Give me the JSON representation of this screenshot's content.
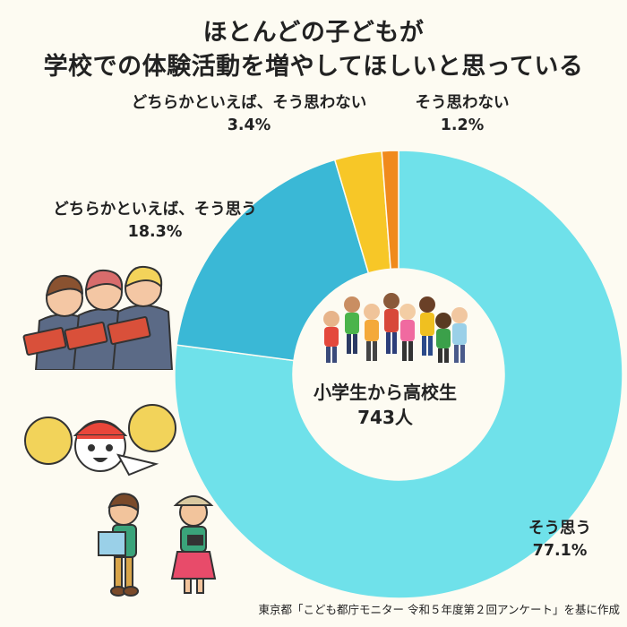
{
  "title": {
    "line1": "ほとんどの子どもが",
    "line2": "学校での体験活動を増やしてほしいと思っている"
  },
  "chart_data": {
    "type": "pie",
    "categories": [
      "そう思う",
      "どちらかといえば、そう思う",
      "どちらかといえば、そう思わない",
      "そう思わない"
    ],
    "values": [
      77.1,
      18.3,
      3.4,
      1.2
    ],
    "value_labels": [
      "77.1%",
      "18.3%",
      "3.4%",
      "1.2%"
    ],
    "colors": [
      "#6fe1ea",
      "#3ab8d6",
      "#f7c727",
      "#f08a1c"
    ],
    "donut": true
  },
  "center": {
    "line1": "小学生から高校生",
    "line2": "743人"
  },
  "source": "東京都「こども都庁モニター 令和５年度第２回アンケート」を基に作成"
}
